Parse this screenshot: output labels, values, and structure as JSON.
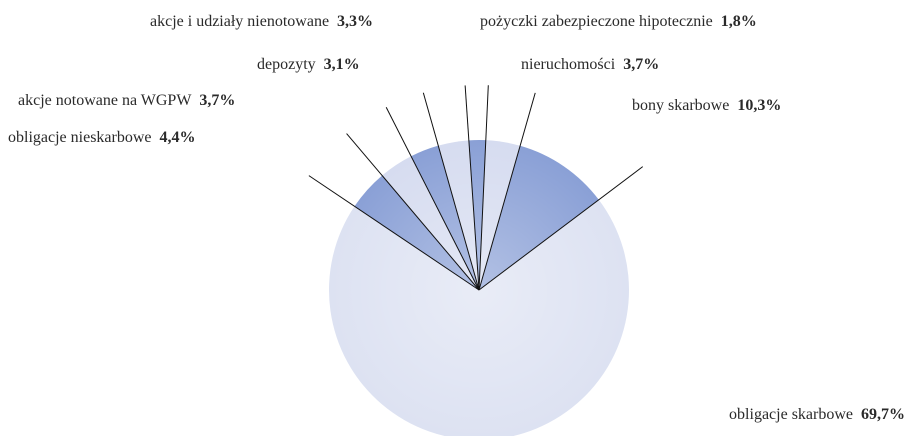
{
  "chart_data": {
    "type": "pie",
    "categories": [
      "obligacje skarbowe",
      "obligacje nieskarbowe",
      "akcje notowane na WGPW",
      "depozyty",
      "akcje i udziały nienotowane",
      "pożyczki zabezpieczone hipotecznie",
      "nieruchomości",
      "bony skarbowe"
    ],
    "values": [
      69.7,
      4.4,
      3.7,
      3.1,
      3.3,
      1.8,
      3.7,
      10.3
    ],
    "value_labels": [
      "69,7%",
      "4,4%",
      "3,7%",
      "3,1%",
      "3,3%",
      "1,8%",
      "3,7%",
      "10,3%"
    ],
    "colors": [
      "#dde2f2",
      "#8aa0d6",
      "#d6dcf0",
      "#8aa0d6",
      "#d6dcf0",
      "#8aa0d6",
      "#d6dcf0",
      "#8aa0d6"
    ]
  }
}
